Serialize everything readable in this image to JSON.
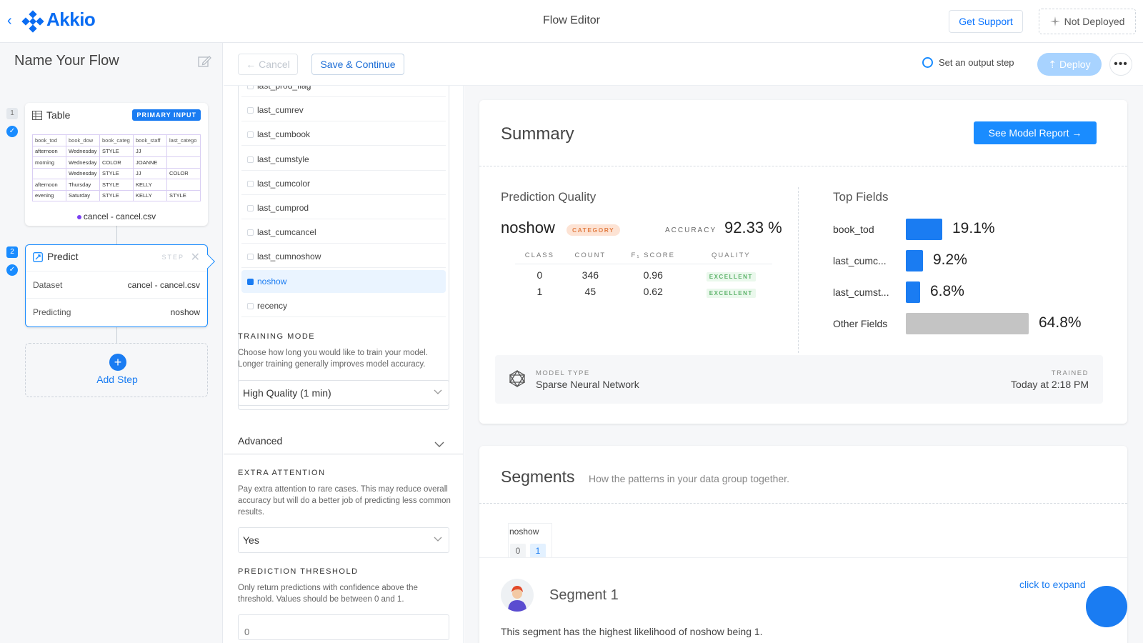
{
  "header": {
    "logo_text": "Akkio",
    "title": "Flow Editor",
    "get_support": "Get Support",
    "not_deployed": "Not Deployed"
  },
  "sidebar": {
    "flow_name": "Name Your Flow",
    "step1": {
      "number": "1",
      "title": "Table",
      "badge": "PRIMARY INPUT",
      "columns": [
        "book_tod",
        "book_dow",
        "book_categ",
        "book_staff",
        "last_catego"
      ],
      "rows": [
        [
          "afternoon",
          "Wednesday",
          "STYLE",
          "JJ",
          ""
        ],
        [
          "morning",
          "Wednesday",
          "COLOR",
          "JOANNE",
          ""
        ],
        [
          "",
          "Wednesday",
          "STYLE",
          "JJ",
          "COLOR"
        ],
        [
          "afternoon",
          "Thursday",
          "STYLE",
          "KELLY",
          ""
        ],
        [
          "evening",
          "Saturday",
          "STYLE",
          "KELLY",
          "STYLE"
        ]
      ],
      "file_label": "cancel - cancel.csv"
    },
    "step2": {
      "number": "2",
      "title": "Predict",
      "step_label": "STEP",
      "dataset_label": "Dataset",
      "dataset_value": "cancel - cancel.csv",
      "predicting_label": "Predicting",
      "predicting_value": "noshow"
    },
    "add_step": "Add Step"
  },
  "actionbar": {
    "cancel": "← Cancel",
    "save": "Save & Continue",
    "output_step": "Set an output step",
    "deploy": "Deploy",
    "more": "•••"
  },
  "config": {
    "fields": [
      {
        "label": "last_prod_flag",
        "selected": false
      },
      {
        "label": "last_cumrev",
        "selected": false
      },
      {
        "label": "last_cumbook",
        "selected": false
      },
      {
        "label": "last_cumstyle",
        "selected": false
      },
      {
        "label": "last_cumcolor",
        "selected": false
      },
      {
        "label": "last_cumprod",
        "selected": false
      },
      {
        "label": "last_cumcancel",
        "selected": false
      },
      {
        "label": "last_cumnoshow",
        "selected": false
      },
      {
        "label": "noshow",
        "selected": true
      },
      {
        "label": "recency",
        "selected": false
      }
    ],
    "training_mode": {
      "heading": "TRAINING MODE",
      "description": "Choose how long you would like to train your model. Longer training generally improves model accuracy.",
      "value": "High Quality (1 min)"
    },
    "advanced": "Advanced",
    "extra_attention": {
      "heading": "EXTRA ATTENTION",
      "description": "Pay extra attention to rare cases. This may reduce overall accuracy but will do a better job of predicting less common results.",
      "value": "Yes"
    },
    "prediction_threshold": {
      "heading": "PREDICTION THRESHOLD",
      "description": "Only return predictions with confidence above the threshold. Values should be between 0 and 1.",
      "placeholder": "0"
    }
  },
  "summary": {
    "title": "Summary",
    "report_button": "See Model Report →",
    "prediction_quality": {
      "title": "Prediction Quality",
      "target": "noshow",
      "category_badge": "CATEGORY",
      "accuracy_label": "ACCURACY",
      "accuracy_value": "92.33 %",
      "headers": [
        "CLASS",
        "COUNT",
        "F₁ SCORE",
        "QUALITY"
      ],
      "rows": [
        {
          "class": "0",
          "count": "346",
          "f1": "0.96",
          "quality": "EXCELLENT"
        },
        {
          "class": "1",
          "count": "45",
          "f1": "0.62",
          "quality": "EXCELLENT"
        }
      ]
    },
    "top_fields": {
      "title": "Top Fields",
      "items": [
        {
          "name": "book_tod",
          "label": "19.1%",
          "value": 19.1,
          "color": "#1a7cf2"
        },
        {
          "name": "last_cumc...",
          "label": "9.2%",
          "value": 9.2,
          "color": "#1a7cf2"
        },
        {
          "name": "last_cumst...",
          "label": "6.8%",
          "value": 6.8,
          "color": "#1a7cf2"
        },
        {
          "name": "Other Fields",
          "label": "64.8%",
          "value": 64.8,
          "color": "#c4c4c4"
        }
      ]
    },
    "model_type_label": "MODEL TYPE",
    "model_type": "Sparse Neural Network",
    "trained_label": "TRAINED",
    "trained": "Today at 2:18 PM"
  },
  "segments": {
    "title": "Segments",
    "subtitle": "How the patterns in your data group together.",
    "tab_label": "noshow",
    "tab_values": [
      "0",
      "1"
    ],
    "segment_name": "Segment 1",
    "expand": "click to expand",
    "description": "This segment has the highest likelihood of noshow being 1."
  },
  "colors": {
    "accent": "#1a7cf2",
    "deploy_disabled": "#a8d3ff",
    "category_badge_bg": "#fde3d4",
    "excellent_bg": "#eaf8ec"
  }
}
